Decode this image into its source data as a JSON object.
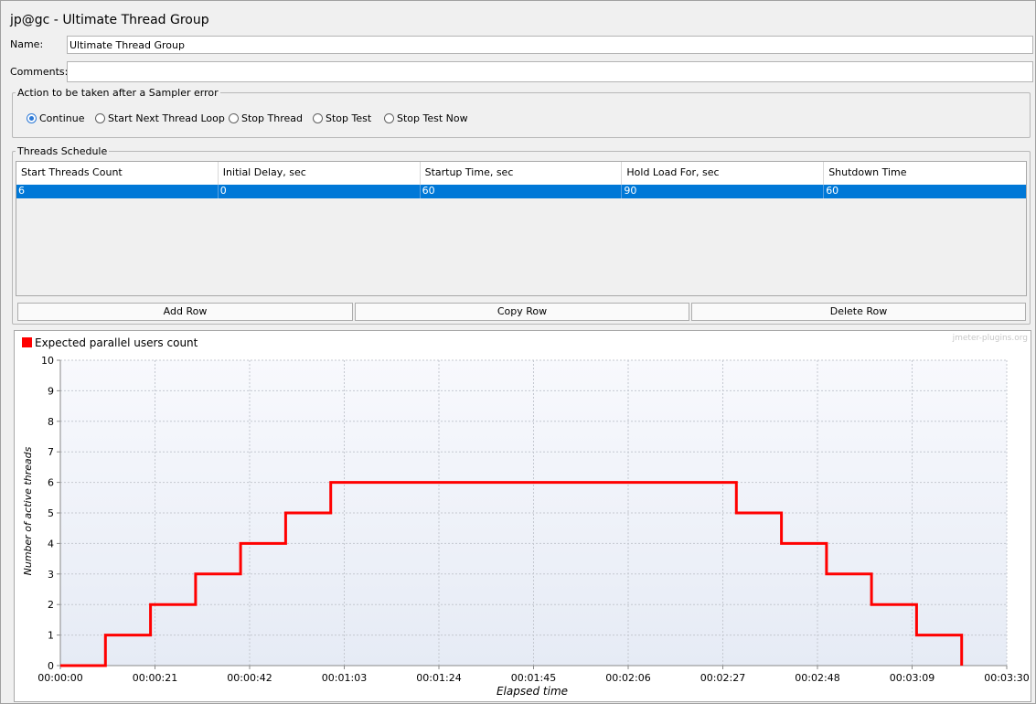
{
  "window": {
    "title": "jp@gc - Ultimate Thread Group"
  },
  "form": {
    "name_label": "Name:",
    "name_value": "Ultimate Thread Group",
    "comments_label": "Comments:",
    "comments_value": ""
  },
  "sampler_error": {
    "legend": "Action to be taken after a Sampler error",
    "options": [
      {
        "label": "Continue",
        "selected": true
      },
      {
        "label": "Start Next Thread Loop",
        "selected": false
      },
      {
        "label": "Stop Thread",
        "selected": false
      },
      {
        "label": "Stop Test",
        "selected": false
      },
      {
        "label": "Stop Test Now",
        "selected": false
      }
    ]
  },
  "schedule": {
    "legend": "Threads Schedule",
    "columns": [
      "Start Threads Count",
      "Initial Delay, sec",
      "Startup Time, sec",
      "Hold Load For, sec",
      "Shutdown Time"
    ],
    "rows": [
      [
        "6",
        "0",
        "60",
        "90",
        "60"
      ]
    ],
    "buttons": {
      "add": "Add Row",
      "copy": "Copy Row",
      "delete": "Delete Row"
    }
  },
  "colors": {
    "series": "#ff0000",
    "selection": "#0078d7",
    "radio_selected": "#2b78d6"
  },
  "chart_data": {
    "type": "line",
    "step": true,
    "watermark": "jmeter-plugins.org",
    "xlabel": "Elapsed time",
    "ylabel": "Number of active threads",
    "x_unit": "seconds",
    "xlim": [
      0,
      210
    ],
    "ylim": [
      0,
      10
    ],
    "x_ticks": [
      0,
      21,
      42,
      63,
      84,
      105,
      126,
      147,
      168,
      189,
      210
    ],
    "x_tick_labels": [
      "00:00:00",
      "00:00:21",
      "00:00:42",
      "00:01:03",
      "00:01:24",
      "00:01:45",
      "00:02:06",
      "00:02:27",
      "00:02:48",
      "00:03:09",
      "00:03:30"
    ],
    "y_ticks": [
      0,
      1,
      2,
      3,
      4,
      5,
      6,
      7,
      8,
      9,
      10
    ],
    "y_tick_labels": [
      "0",
      "1",
      "2",
      "3",
      "4",
      "5",
      "6",
      "7",
      "8",
      "9",
      "10"
    ],
    "grid": true,
    "legend_position": "top-left",
    "series": [
      {
        "name": "Expected parallel users count",
        "points": [
          [
            0,
            0
          ],
          [
            10,
            0
          ],
          [
            10,
            1
          ],
          [
            20,
            1
          ],
          [
            20,
            2
          ],
          [
            30,
            2
          ],
          [
            30,
            3
          ],
          [
            40,
            3
          ],
          [
            40,
            4
          ],
          [
            50,
            4
          ],
          [
            50,
            5
          ],
          [
            60,
            5
          ],
          [
            60,
            6
          ],
          [
            150,
            6
          ],
          [
            150,
            5
          ],
          [
            160,
            5
          ],
          [
            160,
            4
          ],
          [
            170,
            4
          ],
          [
            170,
            3
          ],
          [
            180,
            3
          ],
          [
            180,
            2
          ],
          [
            190,
            2
          ],
          [
            190,
            1
          ],
          [
            200,
            1
          ],
          [
            200,
            0
          ]
        ]
      }
    ]
  }
}
